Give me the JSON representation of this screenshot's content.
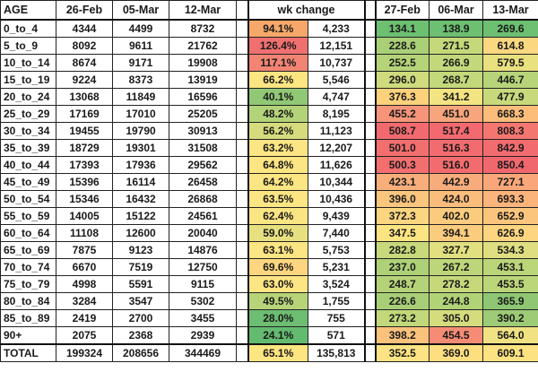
{
  "table": {
    "headers": {
      "age": "AGE",
      "cases": [
        "26-Feb",
        "05-Mar",
        "12-Mar"
      ],
      "wk_change": "wk change",
      "rates": [
        "27-Feb",
        "06-Mar",
        "13-Mar"
      ]
    },
    "rows": [
      {
        "age": "0_to_4",
        "c1": "4344",
        "c2": "4499",
        "c3": "8732",
        "pct": "94.1%",
        "pct_color": "#f5a86a",
        "abs": "4,233",
        "r1": "134.1",
        "r1c": "#6dbf72",
        "r2": "138.9",
        "r2c": "#6dbf72",
        "r3": "269.6",
        "r3c": "#6dbf72"
      },
      {
        "age": "5_to_9",
        "c1": "8092",
        "c2": "9611",
        "c3": "21762",
        "pct": "126.4%",
        "pct_color": "#f07070",
        "abs": "12,151",
        "r1": "228.6",
        "r1c": "#a9d077",
        "r2": "271.5",
        "r2c": "#c5d97a",
        "r3": "614.8",
        "r3c": "#fbd880"
      },
      {
        "age": "10_to_14",
        "c1": "8674",
        "c2": "9171",
        "c3": "19908",
        "pct": "117.1%",
        "pct_color": "#f28474",
        "abs": "10,737",
        "r1": "252.5",
        "r1c": "#b5d478",
        "r2": "266.9",
        "r2c": "#c2d87a",
        "r3": "579.5",
        "r3c": "#e9e07f"
      },
      {
        "age": "15_to_19",
        "c1": "9224",
        "c2": "8373",
        "c3": "13919",
        "pct": "66.2%",
        "pct_color": "#fde582",
        "abs": "5,546",
        "r1": "296.0",
        "r1c": "#cfdb7c",
        "r2": "268.7",
        "r2c": "#c3d87a",
        "r3": "446.7",
        "r3c": "#b7d479"
      },
      {
        "age": "20_to_24",
        "c1": "13068",
        "c2": "11849",
        "c3": "16596",
        "pct": "40.1%",
        "pct_color": "#90c875",
        "abs": "4,747",
        "r1": "376.3",
        "r1c": "#fbd17c",
        "r2": "341.2",
        "r2c": "#f3e483",
        "r3": "477.9",
        "r3c": "#c8d97b"
      },
      {
        "age": "25_to_29",
        "c1": "17169",
        "c2": "17010",
        "c3": "25205",
        "pct": "48.2%",
        "pct_color": "#b3d379",
        "abs": "8,195",
        "r1": "455.2",
        "r1c": "#f6957a",
        "r2": "451.0",
        "r2c": "#f7a57c",
        "r3": "668.3",
        "r3c": "#fcbc7a"
      },
      {
        "age": "30_to_34",
        "c1": "19455",
        "c2": "19790",
        "c3": "30913",
        "pct": "56.2%",
        "pct_color": "#d6dc7d",
        "abs": "11,123",
        "r1": "508.7",
        "r1c": "#f26a6f",
        "r2": "517.4",
        "r2c": "#f26a6f",
        "r3": "808.3",
        "r3c": "#f47671"
      },
      {
        "age": "35_to_39",
        "c1": "18729",
        "c2": "19301",
        "c3": "31508",
        "pct": "63.2%",
        "pct_color": "#fce583",
        "abs": "12,207",
        "r1": "501.0",
        "r1c": "#f26e6f",
        "r2": "516.3",
        "r2c": "#f26c6f",
        "r3": "842.9",
        "r3c": "#f26c6f"
      },
      {
        "age": "40_to_44",
        "c1": "17393",
        "c2": "17936",
        "c3": "29562",
        "pct": "64.8%",
        "pct_color": "#fce583",
        "abs": "11,626",
        "r1": "500.3",
        "r1c": "#f26e6f",
        "r2": "516.0",
        "r2c": "#f26c6f",
        "r3": "850.4",
        "r3c": "#f1676e"
      },
      {
        "age": "45_to_49",
        "c1": "15396",
        "c2": "16114",
        "c3": "26458",
        "pct": "64.2%",
        "pct_color": "#fce583",
        "abs": "10,344",
        "r1": "423.1",
        "r1c": "#f8ae7b",
        "r2": "442.9",
        "r2c": "#f8ac7b",
        "r3": "727.1",
        "r3c": "#f9a77a"
      },
      {
        "age": "50_to_54",
        "c1": "15346",
        "c2": "16432",
        "c3": "26868",
        "pct": "63.5%",
        "pct_color": "#fce583",
        "abs": "10,436",
        "r1": "396.0",
        "r1c": "#fac57d",
        "r2": "424.0",
        "r2c": "#fabd7c",
        "r3": "693.3",
        "r3c": "#fbb47b"
      },
      {
        "age": "55_to_59",
        "c1": "14005",
        "c2": "15122",
        "c3": "24561",
        "pct": "62.4%",
        "pct_color": "#fae583",
        "abs": "9,439",
        "r1": "372.3",
        "r1c": "#fbd57f",
        "r2": "402.0",
        "r2c": "#fbcb7e",
        "r3": "652.9",
        "r3c": "#fcc57d"
      },
      {
        "age": "60_to_64",
        "c1": "11108",
        "c2": "12600",
        "c3": "20040",
        "pct": "59.0%",
        "pct_color": "#e7e080",
        "abs": "7,440",
        "r1": "347.5",
        "r1c": "#fde482",
        "r2": "394.1",
        "r2c": "#fccc7e",
        "r3": "626.9",
        "r3c": "#fdd47f"
      },
      {
        "age": "65_to_69",
        "c1": "7875",
        "c2": "9123",
        "c3": "14876",
        "pct": "63.1%",
        "pct_color": "#fce583",
        "abs": "5,753",
        "r1": "282.8",
        "r1c": "#c7d97b",
        "r2": "327.7",
        "r2c": "#e2df80",
        "r3": "534.3",
        "r3c": "#dfde80"
      },
      {
        "age": "70_to_74",
        "c1": "6670",
        "c2": "7519",
        "c3": "12750",
        "pct": "69.6%",
        "pct_color": "#fdd67f",
        "abs": "5,231",
        "r1": "237.0",
        "r1c": "#aed178",
        "r2": "267.2",
        "r2c": "#bdd679",
        "r3": "453.1",
        "r3c": "#bbd579"
      },
      {
        "age": "75_to_79",
        "c1": "4998",
        "c2": "5591",
        "c3": "9115",
        "pct": "63.0%",
        "pct_color": "#fce583",
        "abs": "3,524",
        "r1": "248.7",
        "r1c": "#b4d378",
        "r2": "278.2",
        "r2c": "#c6d87a",
        "r3": "453.5",
        "r3c": "#bbd579"
      },
      {
        "age": "80_to_84",
        "c1": "3284",
        "c2": "3547",
        "c3": "5302",
        "pct": "49.5%",
        "pct_color": "#b8d479",
        "abs": "1,755",
        "r1": "226.6",
        "r1c": "#a8cf77",
        "r2": "244.8",
        "r2c": "#b2d278",
        "r3": "365.9",
        "r3c": "#8ec674"
      },
      {
        "age": "85_to_89",
        "c1": "2419",
        "c2": "2700",
        "c3": "3455",
        "pct": "28.0%",
        "pct_color": "#6dbd72",
        "abs": "755",
        "r1": "273.2",
        "r1c": "#c2d87a",
        "r2": "305.0",
        "r2c": "#d5dc7d",
        "r3": "390.2",
        "r3c": "#9dcb76"
      },
      {
        "age": "90+",
        "c1": "2075",
        "c2": "2368",
        "c3": "2939",
        "pct": "24.1%",
        "pct_color": "#63bb70",
        "abs": "571",
        "r1": "398.2",
        "r1c": "#fbc27c",
        "r2": "454.5",
        "r2c": "#f68c75",
        "r3": "564.0",
        "r3c": "#f0e283"
      }
    ],
    "total": {
      "age": "TOTAL",
      "c1": "199324",
      "c2": "208656",
      "c3": "344469",
      "pct": "65.1%",
      "pct_color": "#fde582",
      "abs": "135,813",
      "r1": "352.5",
      "r1c": "#fde383",
      "r2": "369.0",
      "r2c": "#fdde81",
      "r3": "609.1",
      "r3c": "#fde282"
    }
  }
}
